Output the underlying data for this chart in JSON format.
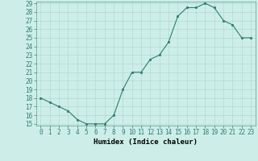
{
  "x": [
    0,
    1,
    2,
    3,
    4,
    5,
    6,
    7,
    8,
    9,
    10,
    11,
    12,
    13,
    14,
    15,
    16,
    17,
    18,
    19,
    20,
    21,
    22,
    23
  ],
  "y": [
    18,
    17.5,
    17,
    16.5,
    15.5,
    15,
    15,
    15,
    16,
    19,
    21,
    21,
    22.5,
    23,
    24.5,
    27.5,
    28.5,
    28.5,
    29,
    28.5,
    27,
    26.5,
    25,
    25
  ],
  "line_color": "#2e7d6e",
  "marker_color": "#2e7d6e",
  "bg_color": "#cdeee8",
  "grid_color": "#a8d5cc",
  "xlabel": "Humidex (Indice chaleur)",
  "ylim": [
    15,
    29
  ],
  "xlim": [
    -0.5,
    23.5
  ],
  "yticks": [
    15,
    16,
    17,
    18,
    19,
    20,
    21,
    22,
    23,
    24,
    25,
    26,
    27,
    28,
    29
  ],
  "xticks": [
    0,
    1,
    2,
    3,
    4,
    5,
    6,
    7,
    8,
    9,
    10,
    11,
    12,
    13,
    14,
    15,
    16,
    17,
    18,
    19,
    20,
    21,
    22,
    23
  ],
  "xlabel_fontsize": 6.5,
  "tick_fontsize": 5.5
}
